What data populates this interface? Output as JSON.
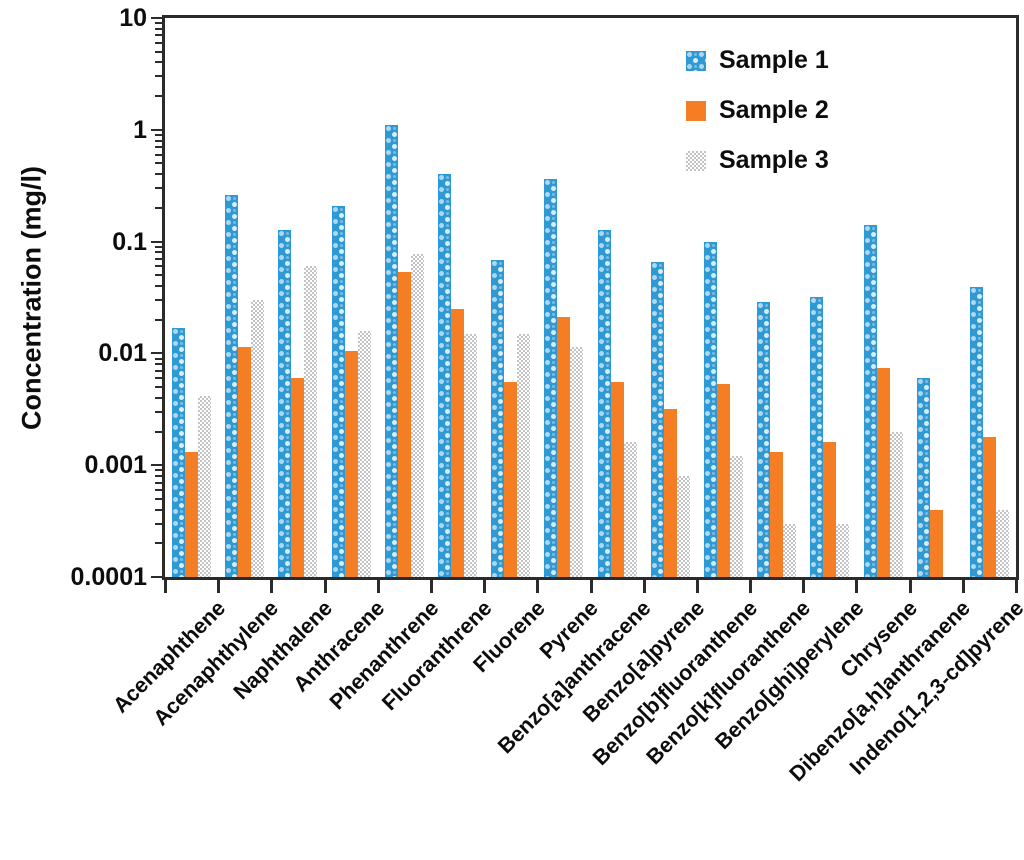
{
  "chart_data": {
    "type": "bar",
    "title": "",
    "xlabel": "",
    "ylabel": "Concentration (mg/l)",
    "yscale": "log",
    "ylim": [
      0.0001,
      10
    ],
    "ytick_labels": [
      "10",
      "1",
      "0.1",
      "0.01",
      "0.001",
      "0.0001"
    ],
    "ytick_values": [
      10,
      1,
      0.1,
      0.01,
      0.001,
      0.0001
    ],
    "grid": false,
    "legend_position": "top-center-inside",
    "categories": [
      "Acenaphthene",
      "Acenaphthylene",
      "Naphthalene",
      "Anthracene",
      "Phenanthrene",
      "Fluoranthrene",
      "Fluorene",
      "Pyrene",
      "Benzo[a]anthracene",
      "Benzo[a]pyrene",
      "Benzo[b]fluoranthene",
      "Benzo[k]fluoranthene",
      "Benzo[ghi]perylene",
      "Chrysene",
      "Dibenzo[a,h]anthranene",
      "Indeno[1,2,3-cd]pyrene"
    ],
    "series": [
      {
        "name": "Sample 1",
        "color": "#2f99d4",
        "pattern": "sphere-dots",
        "values": [
          0.017,
          0.26,
          0.126,
          0.21,
          1.1,
          0.4,
          0.068,
          0.36,
          0.126,
          0.066,
          0.099,
          0.029,
          0.032,
          0.14,
          0.006,
          0.039
        ]
      },
      {
        "name": "Sample 2",
        "color": "#f57e25",
        "pattern": "solid",
        "values": [
          0.0013,
          0.0115,
          0.006,
          0.0105,
          0.054,
          0.025,
          0.0055,
          0.021,
          0.0055,
          0.0032,
          0.0053,
          0.0013,
          0.0016,
          0.0074,
          0.0004,
          0.0018
        ]
      },
      {
        "name": "Sample 3",
        "color": "#c3c3c3",
        "pattern": "checker",
        "values": [
          0.0042,
          0.03,
          0.06,
          0.016,
          0.077,
          0.015,
          0.015,
          0.0115,
          0.0016,
          0.0008,
          0.0012,
          0.0003,
          0.0003,
          0.002,
          null,
          0.0004
        ]
      }
    ]
  },
  "colors": {
    "axis": "#2b2b2b",
    "text": "#0d0d0d",
    "background": "#ffffff"
  }
}
